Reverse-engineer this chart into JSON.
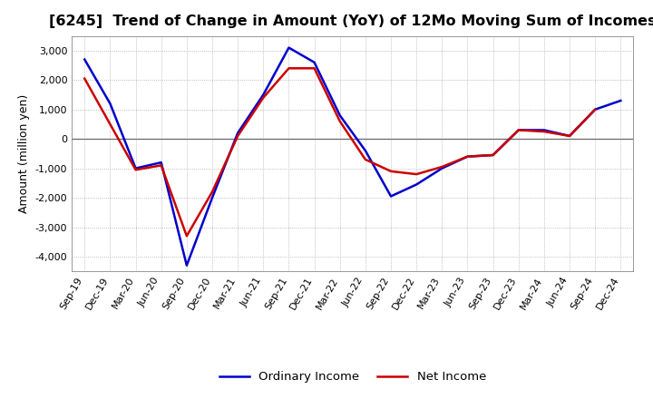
{
  "title": "[6245]  Trend of Change in Amount (YoY) of 12Mo Moving Sum of Incomes",
  "ylabel": "Amount (million yen)",
  "x_labels": [
    "Sep-19",
    "Dec-19",
    "Mar-20",
    "Jun-20",
    "Sep-20",
    "Dec-20",
    "Mar-21",
    "Jun-21",
    "Sep-21",
    "Dec-21",
    "Mar-22",
    "Jun-22",
    "Sep-22",
    "Dec-22",
    "Mar-23",
    "Jun-23",
    "Sep-23",
    "Dec-23",
    "Mar-24",
    "Jun-24",
    "Sep-24",
    "Dec-24"
  ],
  "ordinary_income": [
    2700,
    1200,
    -1000,
    -800,
    -4300,
    -2000,
    200,
    1500,
    3100,
    2600,
    800,
    -400,
    -1950,
    -1550,
    -1000,
    -600,
    -550,
    300,
    300,
    100,
    1000,
    1300
  ],
  "net_income": [
    2050,
    500,
    -1050,
    -900,
    -3300,
    -1800,
    100,
    1400,
    2400,
    2400,
    600,
    -700,
    -1100,
    -1200,
    -950,
    -600,
    -550,
    300,
    250,
    100,
    1000,
    null
  ],
  "ordinary_color": "#0000cc",
  "net_color": "#cc0000",
  "background_color": "#ffffff",
  "grid_color": "#aaaaaa",
  "ylim": [
    -4500,
    3500
  ],
  "yticks": [
    -4000,
    -3000,
    -2000,
    -1000,
    0,
    1000,
    2000,
    3000
  ],
  "legend_labels": [
    "Ordinary Income",
    "Net Income"
  ],
  "title_fontsize": 11.5,
  "axis_fontsize": 9,
  "tick_fontsize": 8,
  "line_width": 1.8
}
